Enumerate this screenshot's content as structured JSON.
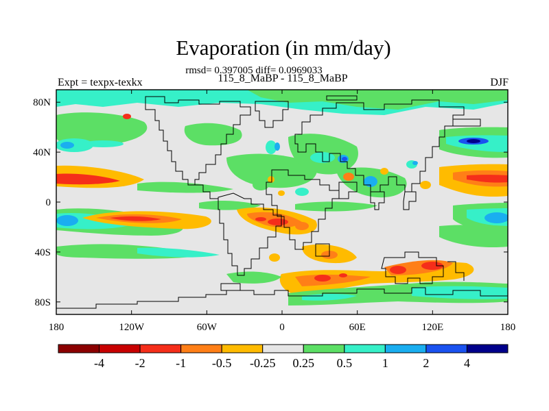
{
  "figure": {
    "title": "Evaporation (in mm/day)",
    "stats": "rmsd= 0.397005 diff= 0.0969033",
    "expt_label": "Expt = texpx-texkx",
    "period_label": "115_8_MaBP - 115_8_MaBP",
    "season_label": "DJF"
  },
  "map": {
    "x_ticks": [
      {
        "value": -180,
        "label": "180"
      },
      {
        "value": -120,
        "label": "120W"
      },
      {
        "value": -60,
        "label": "60W"
      },
      {
        "value": 0,
        "label": "0"
      },
      {
        "value": 60,
        "label": "60E"
      },
      {
        "value": 120,
        "label": "120E"
      },
      {
        "value": 180,
        "label": "180"
      }
    ],
    "y_ticks": [
      {
        "value": 80,
        "label": "80N"
      },
      {
        "value": 40,
        "label": "40N"
      },
      {
        "value": 0,
        "label": "0"
      },
      {
        "value": -40,
        "label": "40S"
      },
      {
        "value": -80,
        "label": "80S"
      }
    ],
    "lon_range": [
      -180,
      180
    ],
    "lat_range": [
      -90,
      90
    ],
    "background_color": "#e6e6e6"
  },
  "colorbar": {
    "labels": [
      "-4",
      "-2",
      "-1",
      "-0.5",
      "-0.25",
      "0.25",
      "0.5",
      "1",
      "2",
      "4"
    ],
    "colors": [
      "#8b0000",
      "#c80000",
      "#f52e1a",
      "#ff7f17",
      "#ffbb00",
      "#e6e6e6",
      "#5cdf65",
      "#36f0c8",
      "#1aaef0",
      "#1a52f0",
      "#00008b"
    ]
  }
}
